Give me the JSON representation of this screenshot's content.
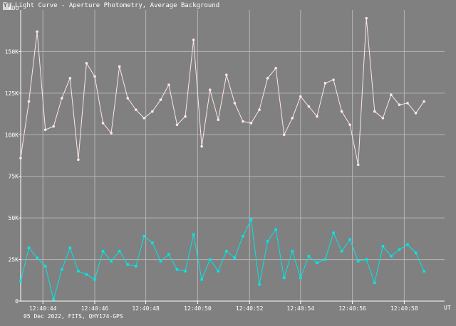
{
  "window": {
    "icon": "yt-logo-icon",
    "title": "Light Curve - Aperture Photometry, Average Background"
  },
  "footer": {
    "caption": "05 Dec 2022, FITS, QHY174-GPS"
  },
  "colors": {
    "background": "#808080",
    "grid": "#b4b4b4",
    "axis": "#ffffff",
    "series_top": "#ffe6e6",
    "series_bottom": "#00e6e6"
  },
  "chart_data": {
    "type": "line",
    "title": "",
    "ylabel": "ADU",
    "xlabel": "UT",
    "ylim": [
      0,
      175000
    ],
    "xlim": [
      0,
      51.5
    ],
    "grid": true,
    "legend": "none",
    "y_ticks": [
      {
        "value": 0,
        "label": "0"
      },
      {
        "value": 25000,
        "label": "25K"
      },
      {
        "value": 50000,
        "label": "50K"
      },
      {
        "value": 75000,
        "label": "75K"
      },
      {
        "value": 100000,
        "label": "100K"
      },
      {
        "value": 125000,
        "label": "125K"
      },
      {
        "value": 150000,
        "label": "150K"
      }
    ],
    "x_ticks": [
      {
        "value": 2.7,
        "label": "12:40:44"
      },
      {
        "value": 9.0,
        "label": "12:40:46"
      },
      {
        "value": 15.2,
        "label": "12:40:48"
      },
      {
        "value": 21.5,
        "label": "12:40:50"
      },
      {
        "value": 27.8,
        "label": "12:40:52"
      },
      {
        "value": 34.0,
        "label": "12:40:54"
      },
      {
        "value": 40.3,
        "label": "12:40:56"
      },
      {
        "value": 46.6,
        "label": "12:40:58"
      }
    ],
    "series": [
      {
        "name": "",
        "color": "#ffe6e6",
        "values": [
          86000,
          120000,
          162000,
          103000,
          105000,
          122000,
          134000,
          85000,
          143000,
          135000,
          107000,
          101000,
          141000,
          122000,
          115000,
          110000,
          114000,
          121000,
          130000,
          106000,
          111000,
          157000,
          93000,
          127000,
          109000,
          136000,
          119000,
          108000,
          107000,
          115000,
          134000,
          140000,
          100000,
          110000,
          123000,
          117000,
          111000,
          131000,
          133000,
          114000,
          106000,
          82000,
          170000,
          114000,
          110000,
          124000,
          118000,
          119000,
          113000,
          120000
        ]
      },
      {
        "name": "",
        "color": "#00e6e6",
        "values": [
          12000,
          32000,
          26000,
          21000,
          1000,
          19000,
          32000,
          18000,
          16000,
          13000,
          30000,
          24000,
          30000,
          22000,
          21000,
          39000,
          35000,
          24000,
          28000,
          19000,
          18000,
          40000,
          13000,
          25000,
          18000,
          30000,
          26000,
          39000,
          49000,
          10000,
          36000,
          43000,
          14000,
          30000,
          14000,
          27000,
          23000,
          25000,
          41000,
          30000,
          37000,
          24000,
          25000,
          11000,
          33000,
          27000,
          31000,
          34000,
          29000,
          18000
        ]
      }
    ]
  }
}
